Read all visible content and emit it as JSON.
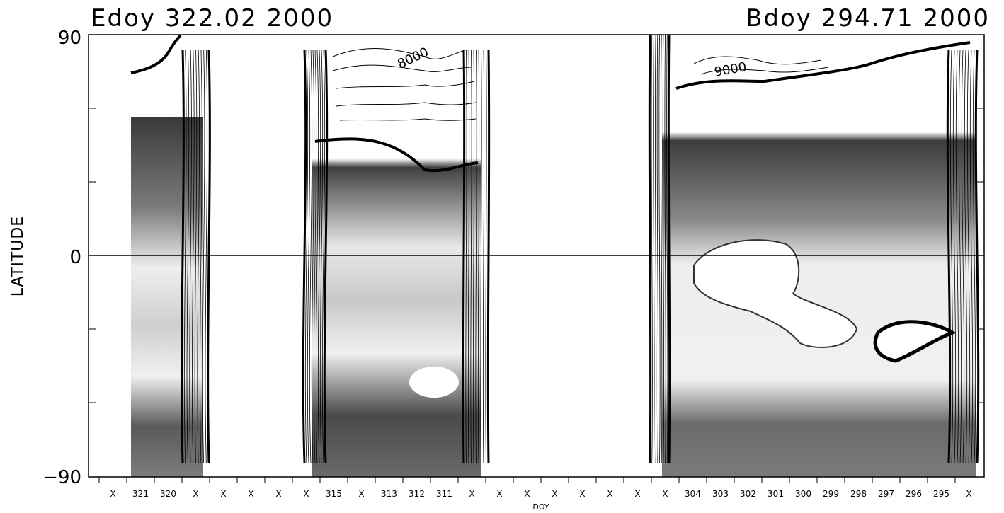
{
  "chart_data": {
    "type": "heatmap",
    "title_left": "Edoy 322.02 2000",
    "title_right": "Bdoy 294.71 2000",
    "xlabel": "DOY",
    "ylabel": "LATITUDE",
    "y_ticks": [
      "90",
      "0",
      "−90"
    ],
    "ylim": [
      -90,
      90
    ],
    "x_axis_direction": "decreasing day-of-year left to right",
    "x_tick_labels": [
      "X",
      "321",
      "320",
      "X",
      "X",
      "X",
      "X",
      "X",
      "315",
      "X",
      "313",
      "312",
      "311",
      "X",
      "X",
      "X",
      "X",
      "X",
      "X",
      "X",
      "X",
      "304",
      "303",
      "302",
      "301",
      "300",
      "299",
      "298",
      "297",
      "296",
      "295",
      "X"
    ],
    "contour_labels": [
      "8000",
      "9000"
    ],
    "colorscale": "grayscale filled contours",
    "grid": false,
    "equator_line": true,
    "data_columns": [
      {
        "from": "321",
        "to": "320"
      },
      {
        "from": "315",
        "to": "311"
      },
      {
        "from": "304",
        "to": "295"
      }
    ]
  }
}
